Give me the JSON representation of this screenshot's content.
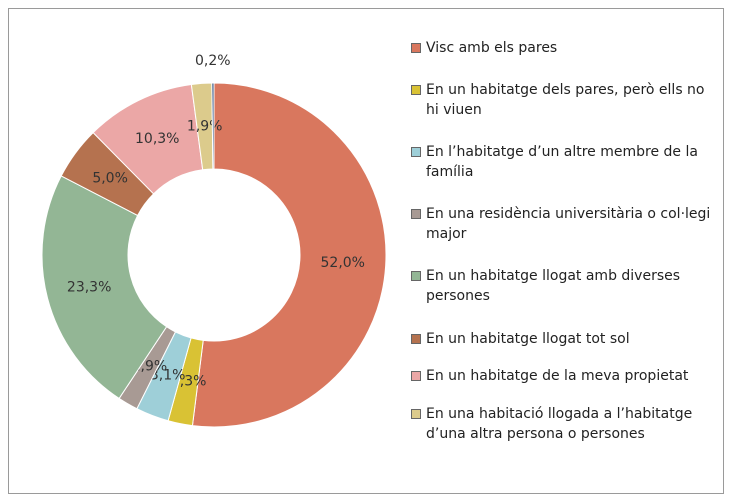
{
  "chart_data": {
    "type": "donut",
    "categories": [
      "Visc amb els pares",
      "En un habitatge dels pares, però ells no hi viuen",
      "En l’habitatge d’un altre membre de la família",
      "En una residència universitària o col·legi major",
      "En un habitatge llogat amb diverses persones",
      "En un habitatge llogat tot sol",
      "En un habitatge de la meva propietat",
      "En una habitació llogada a l’habitatge d’una altra persona o persones",
      null
    ],
    "values": [
      52.0,
      2.3,
      3.1,
      1.9,
      23.3,
      5.0,
      10.3,
      1.9,
      0.2
    ],
    "value_labels": [
      "52,0%",
      "2,3%",
      "3,1%",
      "1,9%",
      "23,3%",
      "5,0%",
      "10,3%",
      "1,9%",
      "0,2%"
    ],
    "colors": [
      "#d9775e",
      "#d9c234",
      "#9ecfd8",
      "#a89a94",
      "#93b695",
      "#b5724f",
      "#eba7a6",
      "#dccb8c",
      "#2f4f7f"
    ],
    "legend": "right"
  }
}
